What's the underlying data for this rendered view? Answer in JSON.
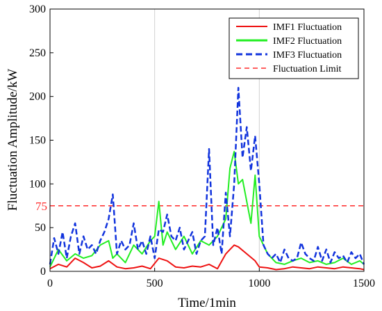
{
  "chart_data": {
    "type": "line",
    "title": "",
    "xlabel": "Time/1min",
    "ylabel": "Fluctuation Amplitude/kW",
    "xlim": [
      0,
      1500
    ],
    "ylim": [
      0,
      300
    ],
    "xticks": [
      0,
      500,
      1000,
      1500
    ],
    "yticks": [
      0,
      50,
      100,
      150,
      200,
      250,
      300
    ],
    "grid": true,
    "legend_position": "top-right",
    "limit": {
      "value": 75,
      "label": "75",
      "name": "Fluctuation Limit",
      "color": "#ff2a2a"
    },
    "series": [
      {
        "name": "IMF1 Fluctuation",
        "color": "#ee1111",
        "style": "solid",
        "x": [
          0,
          40,
          80,
          120,
          160,
          200,
          240,
          280,
          320,
          360,
          400,
          440,
          480,
          520,
          560,
          600,
          640,
          680,
          720,
          760,
          800,
          840,
          860,
          880,
          900,
          940,
          980,
          1000,
          1040,
          1080,
          1120,
          1160,
          1200,
          1240,
          1280,
          1320,
          1360,
          1400,
          1440,
          1480,
          1500
        ],
        "y": [
          3,
          8,
          5,
          15,
          10,
          4,
          6,
          12,
          5,
          3,
          4,
          6,
          3,
          15,
          12,
          5,
          4,
          6,
          5,
          8,
          3,
          20,
          25,
          30,
          28,
          20,
          12,
          5,
          4,
          2,
          3,
          5,
          4,
          3,
          5,
          4,
          3,
          5,
          4,
          3,
          2
        ]
      },
      {
        "name": "IMF2 Fluctuation",
        "color": "#22ee22",
        "style": "solid",
        "x": [
          0,
          40,
          80,
          120,
          160,
          200,
          240,
          280,
          300,
          320,
          360,
          400,
          440,
          480,
          500,
          520,
          540,
          560,
          600,
          640,
          680,
          720,
          760,
          800,
          840,
          860,
          880,
          900,
          920,
          960,
          980,
          1000,
          1040,
          1080,
          1120,
          1160,
          1200,
          1240,
          1280,
          1320,
          1360,
          1400,
          1440,
          1480,
          1500
        ],
        "y": [
          5,
          25,
          12,
          20,
          15,
          18,
          30,
          35,
          15,
          20,
          10,
          30,
          20,
          35,
          40,
          80,
          30,
          45,
          25,
          40,
          20,
          35,
          30,
          40,
          60,
          118,
          137,
          100,
          105,
          55,
          110,
          40,
          20,
          10,
          8,
          12,
          15,
          10,
          12,
          8,
          10,
          15,
          8,
          12,
          8
        ]
      },
      {
        "name": "IMF3 Fluctuation",
        "color": "#1133dd",
        "style": "dashed",
        "x": [
          0,
          20,
          40,
          60,
          80,
          100,
          120,
          140,
          160,
          180,
          200,
          220,
          240,
          260,
          280,
          300,
          320,
          340,
          360,
          380,
          400,
          420,
          440,
          460,
          480,
          500,
          520,
          540,
          560,
          580,
          600,
          620,
          640,
          660,
          680,
          700,
          720,
          740,
          760,
          780,
          800,
          820,
          840,
          860,
          880,
          900,
          920,
          940,
          960,
          980,
          1000,
          1020,
          1040,
          1060,
          1080,
          1100,
          1120,
          1140,
          1160,
          1180,
          1200,
          1220,
          1240,
          1260,
          1280,
          1300,
          1320,
          1340,
          1360,
          1380,
          1400,
          1420,
          1440,
          1460,
          1480,
          1500
        ],
        "y": [
          8,
          38,
          20,
          45,
          15,
          40,
          55,
          20,
          40,
          25,
          30,
          20,
          35,
          45,
          60,
          88,
          20,
          35,
          25,
          30,
          55,
          25,
          35,
          20,
          40,
          15,
          48,
          45,
          65,
          40,
          35,
          50,
          25,
          35,
          45,
          20,
          35,
          40,
          140,
          30,
          50,
          20,
          90,
          40,
          100,
          210,
          130,
          165,
          115,
          155,
          100,
          30,
          20,
          15,
          20,
          10,
          25,
          15,
          12,
          15,
          33,
          20,
          15,
          12,
          28,
          12,
          25,
          10,
          22,
          15,
          18,
          10,
          22,
          15,
          20,
          8
        ]
      }
    ]
  }
}
